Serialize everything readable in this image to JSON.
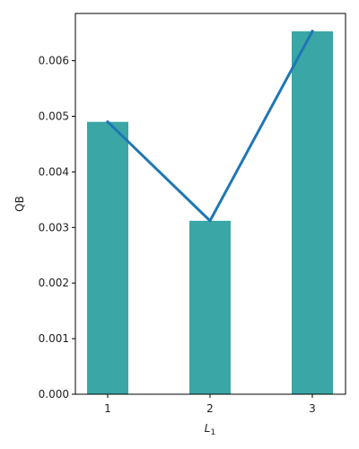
{
  "chart_data": {
    "type": "bar",
    "categories": [
      "1",
      "2",
      "3"
    ],
    "values": [
      0.0049,
      0.00312,
      0.00653
    ],
    "line_values": [
      0.0049,
      0.00312,
      0.00653
    ],
    "ylabel": "QB",
    "xlabel_main": "L",
    "xlabel_sub": "1",
    "ylim": [
      0,
      0.00685
    ],
    "yticks": [
      0,
      0.001,
      0.002,
      0.003,
      0.004,
      0.005,
      0.006
    ],
    "ytick_labels": [
      "0.000",
      "0.001",
      "0.002",
      "0.003",
      "0.004",
      "0.005",
      "0.006"
    ],
    "grid": false,
    "legend": "none",
    "colors": {
      "bar": "#3aa6a6",
      "line": "#1f77b4",
      "axis": "#000000"
    }
  }
}
